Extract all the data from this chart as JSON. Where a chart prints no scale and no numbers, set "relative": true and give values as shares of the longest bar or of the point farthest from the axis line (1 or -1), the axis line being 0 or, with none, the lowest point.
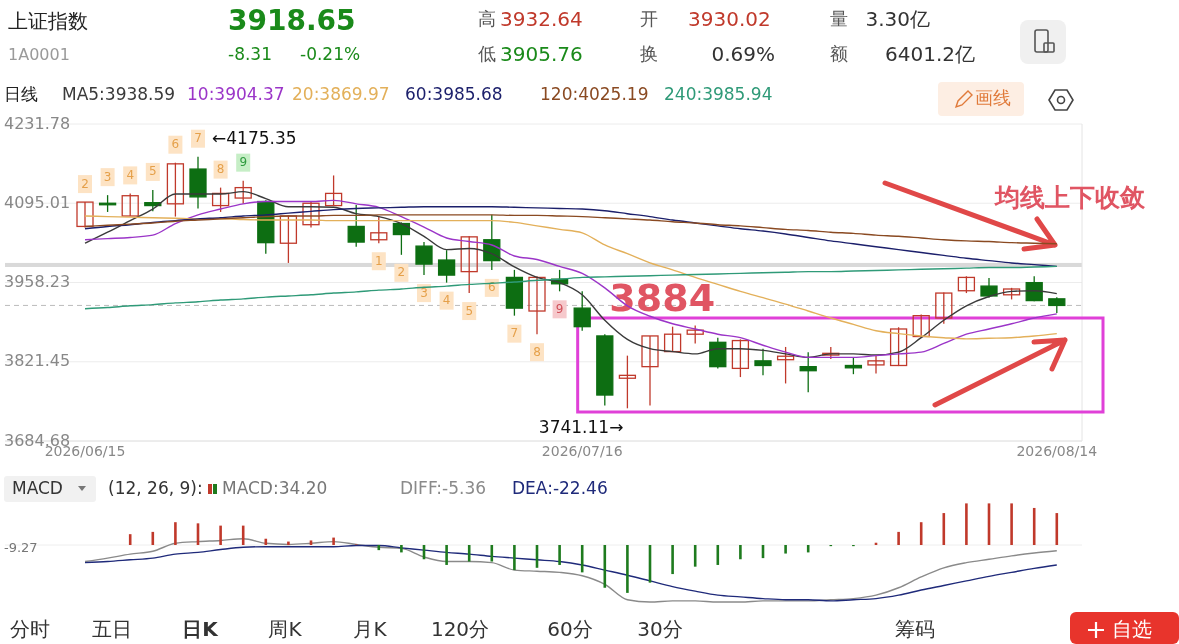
{
  "chart_data": [
    {
      "type": "other",
      "title": "上证指数",
      "annotations": [
        "1A0001",
        "3918.65",
        "-8.31",
        "-0.21%",
        "高",
        "3932.64",
        "低",
        "3905.76",
        "开",
        "3930.02",
        "换",
        "0.69%",
        "量",
        "3.30亿",
        "额",
        "6401.2亿"
      ]
    },
    {
      "type": "candlestick",
      "title": "日线",
      "categories": [
        "2026/06/15",
        null,
        null,
        null,
        null,
        null,
        null,
        null,
        null,
        null,
        null,
        null,
        null,
        null,
        null,
        null,
        null,
        null,
        null,
        null,
        null,
        null,
        "2026/07/16",
        null,
        null,
        null,
        null,
        null,
        null,
        null,
        null,
        null,
        null,
        null,
        null,
        null,
        null,
        null,
        null,
        null,
        null,
        null,
        null,
        "2026/08/14"
      ],
      "ohlc": [
        [
          4055,
          4097,
          4053,
          4097
        ],
        [
          4095,
          4109,
          4080,
          4093
        ],
        [
          4073,
          4112,
          4073,
          4108
        ],
        [
          4096,
          4118,
          4081,
          4091
        ],
        [
          4094,
          4165,
          4072,
          4163
        ],
        [
          4154,
          4175.35,
          4086,
          4106
        ],
        [
          4091,
          4122,
          4080,
          4112
        ],
        [
          4104,
          4134,
          4094,
          4122
        ],
        [
          4098,
          4100,
          4008,
          4027
        ],
        [
          4026,
          4074,
          3992,
          4073
        ],
        [
          4058,
          4098,
          4053,
          4095
        ],
        [
          4091,
          4143,
          4090,
          4112
        ],
        [
          4055,
          4092,
          4020,
          4028
        ],
        [
          4032,
          4072,
          4026,
          4044
        ],
        [
          4060,
          4062,
          4006,
          4041
        ],
        [
          4021,
          4028,
          3971,
          3990
        ],
        [
          3997,
          4014,
          3958,
          3971
        ],
        [
          3977,
          4038,
          3940,
          4037
        ],
        [
          4032,
          4075,
          3980,
          3996
        ],
        [
          3967,
          3980,
          3901,
          3914
        ],
        [
          3909,
          3969,
          3869,
          3967
        ],
        [
          3964,
          3980,
          3943,
          3956
        ],
        [
          3914,
          3943,
          3875,
          3882
        ],
        [
          3866,
          3869,
          3746,
          3764
        ],
        [
          3793,
          3832,
          3741.11,
          3798
        ],
        [
          3813,
          3866,
          3746,
          3866
        ],
        [
          3839,
          3882,
          3839,
          3869
        ],
        [
          3869,
          3884,
          3853,
          3876
        ],
        [
          3855,
          3863,
          3810,
          3813
        ],
        [
          3810,
          3860,
          3795,
          3858
        ],
        [
          3823,
          3844,
          3798,
          3815
        ],
        [
          3825,
          3847,
          3784,
          3831
        ],
        [
          3813,
          3838,
          3769,
          3806
        ],
        [
          3833,
          3847,
          3826,
          3836
        ],
        [
          3815,
          3829,
          3800,
          3811
        ],
        [
          3816,
          3832,
          3801,
          3823
        ],
        [
          3815,
          3881,
          3814,
          3878
        ],
        [
          3865,
          3903,
          3864,
          3901
        ],
        [
          3897,
          3941,
          3887,
          3940
        ],
        [
          3944,
          3969,
          3940,
          3967
        ],
        [
          3952,
          3966,
          3932,
          3935
        ],
        [
          3937,
          3949,
          3929,
          3947
        ],
        [
          3958,
          3969,
          3926,
          3927
        ],
        [
          3930.02,
          3932.64,
          3905.76,
          3918.65
        ]
      ],
      "series": [
        {
          "name": "MA5:3938.59",
          "type": "line",
          "color": "#3a3a3a",
          "values": [
            4026,
            4045,
            4065,
            4085,
            4111,
            4111,
            4111,
            4115,
            4103,
            4089,
            4089,
            4088,
            4077,
            4072,
            4060,
            4038,
            4015,
            4017,
            4008,
            3985,
            3967,
            3958,
            3937,
            3893,
            3860,
            3844,
            3839,
            3835,
            3844,
            3844,
            3841,
            3835,
            3829,
            3835,
            3835,
            3833,
            3838,
            3863,
            3893,
            3918,
            3934,
            3943,
            3944,
            3939
          ]
        },
        {
          "name": "10:3904.37",
          "type": "line",
          "color": "#9b35c8",
          "values": [
            4032,
            4034,
            4036,
            4040,
            4060,
            4075,
            4085,
            4094,
            4098,
            4098,
            4098,
            4100,
            4094,
            4088,
            4072,
            4054,
            4035,
            4029,
            4023,
            4004,
            3998,
            3986,
            3974,
            3949,
            3918,
            3900,
            3887,
            3878,
            3869,
            3863,
            3850,
            3838,
            3829,
            3829,
            3829,
            3832,
            3835,
            3838,
            3853,
            3869,
            3878,
            3887,
            3897,
            3904
          ]
        },
        {
          "name": "20:3869.97",
          "type": "line",
          "color": "#e3b05a",
          "values": [
            4073,
            4072,
            4071,
            4070,
            4069,
            4068,
            4068,
            4067,
            4066,
            4066,
            4066,
            4065,
            4065,
            4065,
            4065,
            4065,
            4065,
            4065,
            4065,
            4062,
            4056,
            4050,
            4044,
            4023,
            4008,
            3992,
            3980,
            3967,
            3955,
            3943,
            3932,
            3921,
            3909,
            3897,
            3886,
            3875,
            3870,
            3866,
            3863,
            3861,
            3862,
            3863,
            3866,
            3870
          ]
        },
        {
          "name": "60:3985.68",
          "type": "line",
          "color": "#1b1f6b",
          "values": [
            4051,
            4055,
            4058,
            4062,
            4065,
            4068,
            4070,
            4073,
            4075,
            4078,
            4081,
            4084,
            4086,
            4087,
            4088,
            4089,
            4089,
            4089,
            4089,
            4088,
            4087,
            4086,
            4085,
            4082,
            4077,
            4072,
            4066,
            4061,
            4056,
            4051,
            4047,
            4042,
            4036,
            4030,
            4025,
            4020,
            4015,
            4010,
            4005,
            4000,
            3996,
            3992,
            3989,
            3986
          ]
        },
        {
          "name": "120:4025.19",
          "type": "line",
          "color": "#8a4a22",
          "values": [
            4055,
            4057,
            4059,
            4061,
            4064,
            4066,
            4068,
            4070,
            4072,
            4073,
            4073,
            4074,
            4074,
            4075,
            4075,
            4075,
            4075,
            4075,
            4075,
            4074,
            4074,
            4073,
            4072,
            4070,
            4068,
            4066,
            4063,
            4061,
            4058,
            4056,
            4053,
            4050,
            4048,
            4045,
            4043,
            4040,
            4038,
            4035,
            4032,
            4030,
            4029,
            4027,
            4026,
            4025
          ]
        },
        {
          "name": "240:3985.94",
          "type": "line",
          "color": "#2f9a78",
          "values": [
            3913,
            3915,
            3918,
            3920,
            3923,
            3925,
            3928,
            3930,
            3933,
            3935,
            3937,
            3940,
            3942,
            3945,
            3947,
            3950,
            3952,
            3955,
            3957,
            3959,
            3962,
            3964,
            3967,
            3968,
            3969,
            3970,
            3971,
            3972,
            3973,
            3974,
            3975,
            3976,
            3977,
            3977,
            3978,
            3979,
            3980,
            3981,
            3982,
            3983,
            3984,
            3984,
            3985,
            3986
          ]
        }
      ],
      "legend": "top left",
      "ylim": [
        3684.68,
        4231.78
      ],
      "yticks": [
        3684.68,
        3821.45,
        3958.23,
        4095.01,
        4231.78
      ],
      "grid": "y",
      "ref_lines": [
        {
          "axis": "y",
          "value": 3918.65,
          "color": "#bbbbbb",
          "line_style": "dashed"
        }
      ],
      "bands": [
        {
          "axis": "y",
          "from": 3985,
          "to": 3992,
          "color": "#d9d9d9"
        }
      ],
      "annotations": [
        "←4175.35",
        "3741.11→",
        "3884",
        "均线上下收敛",
        "画线",
        "2",
        "3",
        "4",
        "5",
        "6",
        "7",
        "8",
        "9",
        "1",
        "2",
        "3",
        "4",
        "5",
        "6",
        "7",
        "8",
        "9"
      ]
    },
    {
      "type": "bar",
      "title": "MACD",
      "subtitle": "(12, 26, 9):",
      "relative": true,
      "categories": [
        null,
        null,
        null,
        null,
        null,
        null,
        null,
        null,
        null,
        null,
        null,
        null,
        null,
        null,
        null,
        null,
        null,
        null,
        null,
        null,
        null,
        null,
        null,
        null,
        null,
        null,
        null,
        null,
        null,
        null,
        null,
        null,
        null,
        null,
        null,
        null,
        null,
        null,
        null,
        null,
        null,
        null,
        null,
        null
      ],
      "series": [
        {
          "name": "MACD:34.20",
          "type": "bar",
          "values": [
            null,
            null,
            0.19,
            0.23,
            0.4,
            0.38,
            0.34,
            0.34,
            0.11,
            0.06,
            0.08,
            0.13,
            0.01,
            -0.09,
            -0.13,
            -0.25,
            -0.35,
            -0.29,
            -0.29,
            -0.44,
            -0.4,
            -0.35,
            -0.48,
            -0.75,
            -0.84,
            -0.66,
            -0.51,
            -0.38,
            -0.35,
            -0.25,
            -0.23,
            -0.15,
            -0.13,
            -0.02,
            -0.02,
            0.04,
            0.23,
            0.4,
            0.56,
            0.73,
            0.73,
            0.73,
            0.65,
            0.56
          ],
          "colors": [
            "#c0392b",
            "#c0392b",
            "#c0392b",
            "#c0392b",
            "#c0392b",
            "#c0392b",
            "#c0392b",
            "#c0392b",
            "#c0392b",
            "#c0392b",
            "#c0392b",
            "#c0392b",
            "#c0392b",
            "#1e7b1e",
            "#1e7b1e",
            "#1e7b1e",
            "#1e7b1e",
            "#1e7b1e",
            "#1e7b1e",
            "#1e7b1e",
            "#1e7b1e",
            "#1e7b1e",
            "#1e7b1e",
            "#1e7b1e",
            "#1e7b1e",
            "#1e7b1e",
            "#1e7b1e",
            "#1e7b1e",
            "#1e7b1e",
            "#1e7b1e",
            "#1e7b1e",
            "#1e7b1e",
            "#1e7b1e",
            "#1e7b1e",
            "#1e7b1e",
            "#c0392b",
            "#c0392b",
            "#c0392b",
            "#c0392b",
            "#c0392b",
            "#c0392b",
            "#c0392b",
            "#c0392b",
            "#c0392b"
          ]
        },
        {
          "name": "DIFF:-5.36",
          "type": "line",
          "color": "#8a8a8a",
          "values": [
            -0.29,
            -0.23,
            -0.16,
            -0.11,
            0.03,
            0.06,
            0.08,
            0.11,
            0.03,
            0.01,
            0.03,
            0.06,
            0.01,
            -0.04,
            -0.06,
            -0.21,
            -0.29,
            -0.29,
            -0.31,
            -0.44,
            -0.46,
            -0.48,
            -0.54,
            -0.69,
            -0.96,
            -1,
            -0.98,
            -0.98,
            -1,
            -1,
            -0.98,
            -0.98,
            -0.98,
            -0.96,
            -0.94,
            -0.88,
            -0.75,
            -0.56,
            -0.4,
            -0.31,
            -0.25,
            -0.19,
            -0.14,
            -0.1
          ]
        },
        {
          "name": "DEA:-22.46",
          "type": "line",
          "color": "#1f2a7a",
          "values": [
            -0.31,
            -0.29,
            -0.26,
            -0.23,
            -0.16,
            -0.13,
            -0.08,
            -0.04,
            -0.03,
            -0.03,
            -0.03,
            -0.03,
            -0.01,
            -0.01,
            -0.05,
            -0.09,
            -0.13,
            -0.16,
            -0.2,
            -0.23,
            -0.26,
            -0.29,
            -0.35,
            -0.44,
            -0.53,
            -0.63,
            -0.73,
            -0.81,
            -0.88,
            -0.91,
            -0.94,
            -0.96,
            -0.96,
            -0.98,
            -0.96,
            -0.94,
            -0.88,
            -0.79,
            -0.71,
            -0.63,
            -0.55,
            -0.48,
            -0.41,
            -0.35
          ]
        }
      ],
      "annotations": [
        "-9.27"
      ]
    },
    {
      "type": "other",
      "annotations": [
        "分时",
        "五日",
        "日K",
        "周K",
        "月K",
        "120分",
        "60分",
        "30分",
        "筹码",
        "自选"
      ]
    }
  ]
}
